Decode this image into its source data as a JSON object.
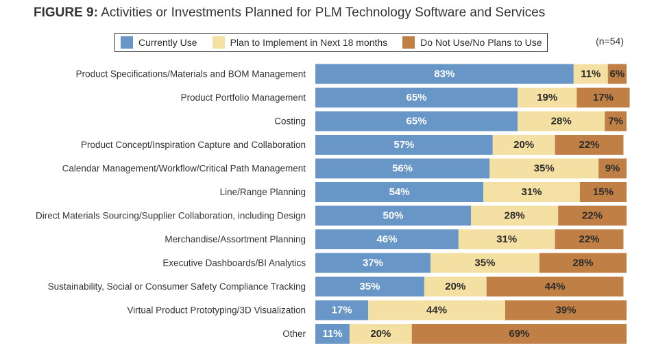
{
  "title_prefix": "FIGURE 9:",
  "title_text": "Activities or Investments Planned for PLM Technology Software and Services",
  "note": "(n=54)",
  "colors": {
    "currently_use": "#6896c6",
    "plan_to_implement": "#f5e0a4",
    "do_not_use": "#bf7f45",
    "label_light": "#ffffff",
    "label_dark": "#2b2b2b"
  },
  "chart_data": {
    "type": "bar",
    "orientation": "horizontal",
    "stacked": true,
    "title": "Activities or Investments Planned for PLM Technology Software and Services",
    "unit": "%",
    "xlim": [
      0,
      100
    ],
    "legend_position": "top",
    "categories": [
      "Product Specifications/Materials and BOM Management",
      "Product Portfolio Management",
      "Costing",
      "Product Concept/Inspiration Capture and Collaboration",
      "Calendar Management/Workflow/Critical Path Management",
      "Line/Range Planning",
      "Direct Materials Sourcing/Supplier Collaboration, including Design",
      "Merchandise/Assortment Planning",
      "Executive Dashboards/BI Analytics",
      "Sustainability, Social or Consumer Safety Compliance Tracking",
      "Virtual Product Prototyping/3D Visualization",
      "Other"
    ],
    "series": [
      {
        "name": "Currently Use",
        "values": [
          83,
          65,
          65,
          57,
          56,
          54,
          50,
          46,
          37,
          35,
          17,
          11
        ]
      },
      {
        "name": "Plan to Implement in Next 18 months",
        "values": [
          11,
          19,
          28,
          20,
          35,
          31,
          28,
          31,
          35,
          20,
          44,
          20
        ]
      },
      {
        "name": "Do Not Use/No Plans to Use",
        "values": [
          6,
          17,
          7,
          22,
          9,
          15,
          22,
          22,
          28,
          44,
          39,
          69
        ]
      }
    ]
  }
}
